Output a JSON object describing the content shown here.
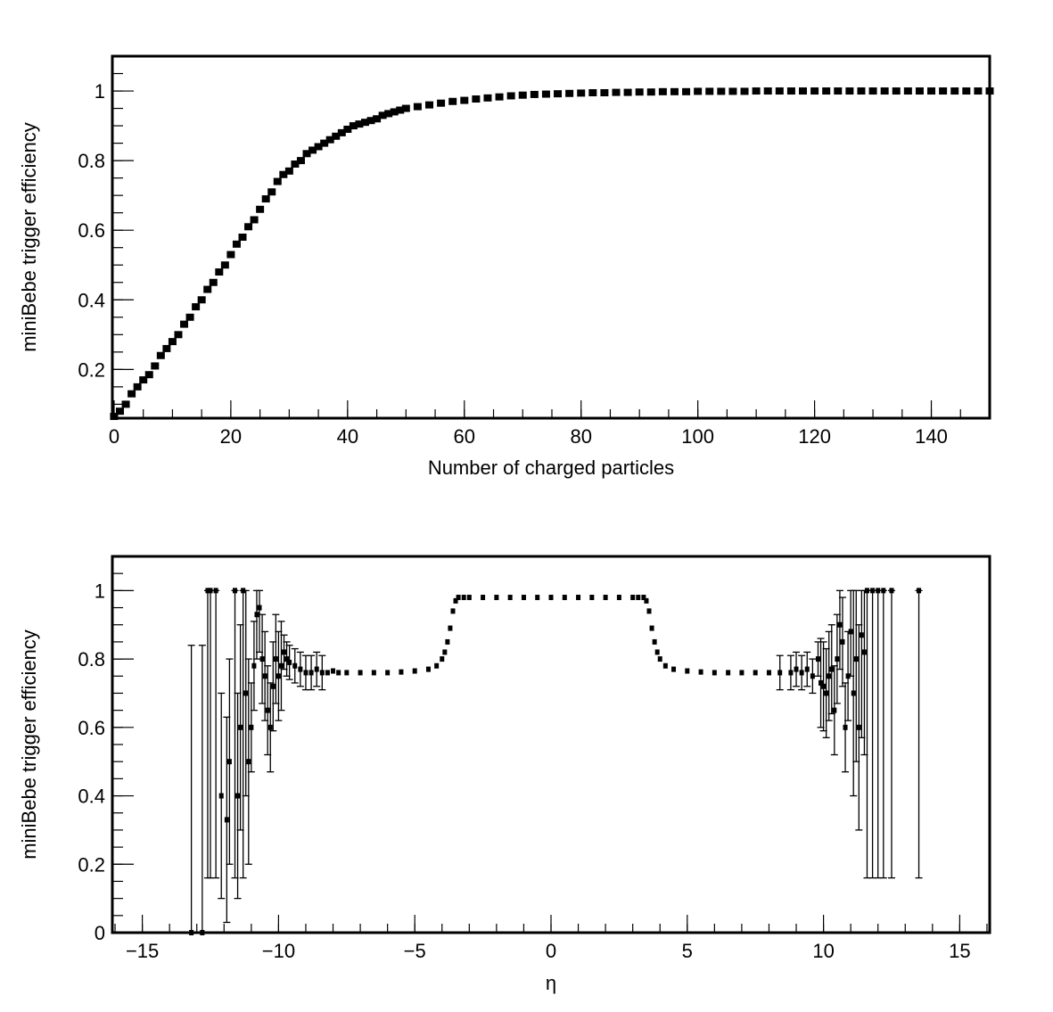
{
  "chart_data": [
    {
      "type": "scatter",
      "title": "",
      "xlabel": "Number of charged particles",
      "ylabel": "miniBebe trigger efficiency",
      "xlim": [
        -0.3,
        150
      ],
      "ylim": [
        0.06,
        1.1
      ],
      "x_ticks": [
        0,
        20,
        40,
        60,
        80,
        100,
        120,
        140
      ],
      "y_ticks": [
        0.2,
        0.4,
        0.6,
        0.8,
        1
      ],
      "x_tick_labels": [
        "0",
        "20",
        "40",
        "60",
        "80",
        "100",
        "120",
        "140"
      ],
      "y_tick_labels": [
        "0.2",
        "0.4",
        "0.6",
        "0.8",
        "1"
      ],
      "x_minor_step": 5,
      "y_minor_step": 0.05,
      "grid": false,
      "legend": "none",
      "marker": "square",
      "series": [
        {
          "x": [
            0,
            1,
            2,
            3,
            4,
            5,
            6,
            7,
            8,
            9,
            10,
            11,
            12,
            13,
            14,
            15,
            16,
            17,
            18,
            19,
            20,
            21,
            22,
            23,
            24,
            25,
            26,
            27,
            28,
            29,
            30,
            31,
            32,
            33,
            34,
            35,
            36,
            37,
            38,
            39,
            40,
            41,
            42,
            43,
            44,
            45,
            46,
            47,
            48,
            49,
            50,
            52,
            54,
            56,
            58,
            60,
            62,
            64,
            66,
            68,
            70,
            72,
            74,
            76,
            78,
            80,
            82,
            84,
            86,
            88,
            90,
            92,
            94,
            96,
            98,
            100,
            102,
            104,
            106,
            108,
            110,
            112,
            114,
            116,
            118,
            120,
            122,
            124,
            126,
            128,
            130,
            132,
            134,
            136,
            138,
            140,
            142,
            144,
            146,
            148,
            150
          ],
          "y": [
            0.065,
            0.08,
            0.1,
            0.13,
            0.15,
            0.17,
            0.185,
            0.21,
            0.24,
            0.26,
            0.28,
            0.3,
            0.33,
            0.35,
            0.38,
            0.4,
            0.43,
            0.45,
            0.48,
            0.5,
            0.53,
            0.56,
            0.58,
            0.61,
            0.63,
            0.66,
            0.69,
            0.71,
            0.74,
            0.76,
            0.77,
            0.79,
            0.8,
            0.82,
            0.83,
            0.84,
            0.85,
            0.86,
            0.87,
            0.88,
            0.89,
            0.9,
            0.905,
            0.91,
            0.915,
            0.92,
            0.93,
            0.935,
            0.94,
            0.945,
            0.95,
            0.955,
            0.96,
            0.965,
            0.97,
            0.973,
            0.977,
            0.98,
            0.983,
            0.986,
            0.988,
            0.99,
            0.991,
            0.992,
            0.993,
            0.994,
            0.995,
            0.995,
            0.996,
            0.996,
            0.997,
            0.997,
            0.998,
            0.998,
            0.998,
            0.999,
            0.999,
            0.999,
            0.999,
            0.999,
            1,
            1,
            1,
            1,
            1,
            1,
            1,
            1,
            1,
            1,
            1,
            1,
            1,
            1,
            1,
            1,
            1,
            1,
            1,
            1,
            1
          ]
        }
      ]
    },
    {
      "type": "scatter",
      "title": "",
      "xlabel": "η",
      "ylabel": "miniBebe trigger efficiency",
      "xlim": [
        -16.1,
        16.1
      ],
      "ylim": [
        0,
        1.1
      ],
      "x_ticks": [
        -15,
        -10,
        -5,
        0,
        5,
        10,
        15
      ],
      "y_ticks": [
        0,
        0.2,
        0.4,
        0.6,
        0.8,
        1
      ],
      "x_tick_labels": [
        "−15",
        "−10",
        "−5",
        "0",
        "5",
        "10",
        "15"
      ],
      "y_tick_labels": [
        "0",
        "0.2",
        "0.4",
        "0.6",
        "0.8",
        "1"
      ],
      "x_minor_step": 1,
      "y_minor_step": 0.05,
      "grid": false,
      "legend": "none",
      "marker": "square",
      "series": [
        {
          "x": [
            -13.2,
            -12.8,
            -12.6,
            -12.5,
            -12.3,
            -12.1,
            -11.9,
            -11.8,
            -11.6,
            -11.5,
            -11.4,
            -11.3,
            -11.2,
            -11.1,
            -11.0,
            -10.9,
            -10.8,
            -10.7,
            -10.6,
            -10.5,
            -10.4,
            -10.3,
            -10.2,
            -10.1,
            -10.0,
            -9.9,
            -9.8,
            -9.7,
            -9.6,
            -9.4,
            -9.2,
            -9.0,
            -8.8,
            -8.6,
            -8.4,
            -8.2,
            -8.0,
            -7.8,
            -7.5,
            -7.0,
            -6.5,
            -6.0,
            -5.5,
            -5.0,
            -4.5,
            -4.2,
            -4.0,
            -3.9,
            -3.8,
            -3.7,
            -3.6,
            -3.5,
            -3.4,
            -3.2,
            -3.0,
            -2.5,
            -2.0,
            -1.5,
            -1.0,
            -0.5,
            0,
            0.5,
            1.0,
            1.5,
            2.0,
            2.5,
            3.0,
            3.2,
            3.4,
            3.5,
            3.6,
            3.7,
            3.8,
            3.9,
            4.0,
            4.2,
            4.5,
            5.0,
            5.5,
            6.0,
            6.5,
            7.0,
            7.5,
            8.0,
            8.4,
            8.8,
            9.0,
            9.2,
            9.4,
            9.6,
            9.8,
            9.9,
            10.0,
            10.1,
            10.2,
            10.3,
            10.4,
            10.5,
            10.6,
            10.7,
            10.8,
            10.9,
            11.0,
            11.1,
            11.2,
            11.3,
            11.4,
            11.5,
            11.6,
            11.8,
            12.0,
            12.2,
            12.5,
            13.5
          ],
          "y": [
            0,
            0,
            1,
            1,
            1,
            0.4,
            0.33,
            0.5,
            1,
            0.4,
            0.6,
            1,
            0.7,
            0.5,
            0.6,
            0.78,
            0.93,
            0.95,
            0.8,
            0.75,
            0.65,
            0.6,
            0.72,
            0.8,
            0.75,
            0.78,
            0.82,
            0.8,
            0.79,
            0.78,
            0.77,
            0.76,
            0.76,
            0.77,
            0.76,
            0.76,
            0.765,
            0.76,
            0.76,
            0.76,
            0.76,
            0.76,
            0.762,
            0.765,
            0.77,
            0.78,
            0.8,
            0.82,
            0.85,
            0.89,
            0.94,
            0.97,
            0.98,
            0.98,
            0.98,
            0.98,
            0.98,
            0.98,
            0.98,
            0.98,
            0.98,
            0.98,
            0.98,
            0.98,
            0.98,
            0.98,
            0.98,
            0.98,
            0.98,
            0.97,
            0.94,
            0.89,
            0.85,
            0.82,
            0.8,
            0.78,
            0.77,
            0.765,
            0.762,
            0.76,
            0.76,
            0.76,
            0.76,
            0.76,
            0.76,
            0.76,
            0.77,
            0.76,
            0.77,
            0.75,
            0.8,
            0.73,
            0.72,
            0.7,
            0.75,
            0.77,
            0.65,
            0.8,
            0.9,
            0.85,
            0.6,
            0.75,
            0.88,
            0.7,
            0.8,
            0.6,
            0.87,
            0.82,
            1,
            1,
            1,
            1,
            1,
            1
          ]
        }
      ]
    }
  ]
}
